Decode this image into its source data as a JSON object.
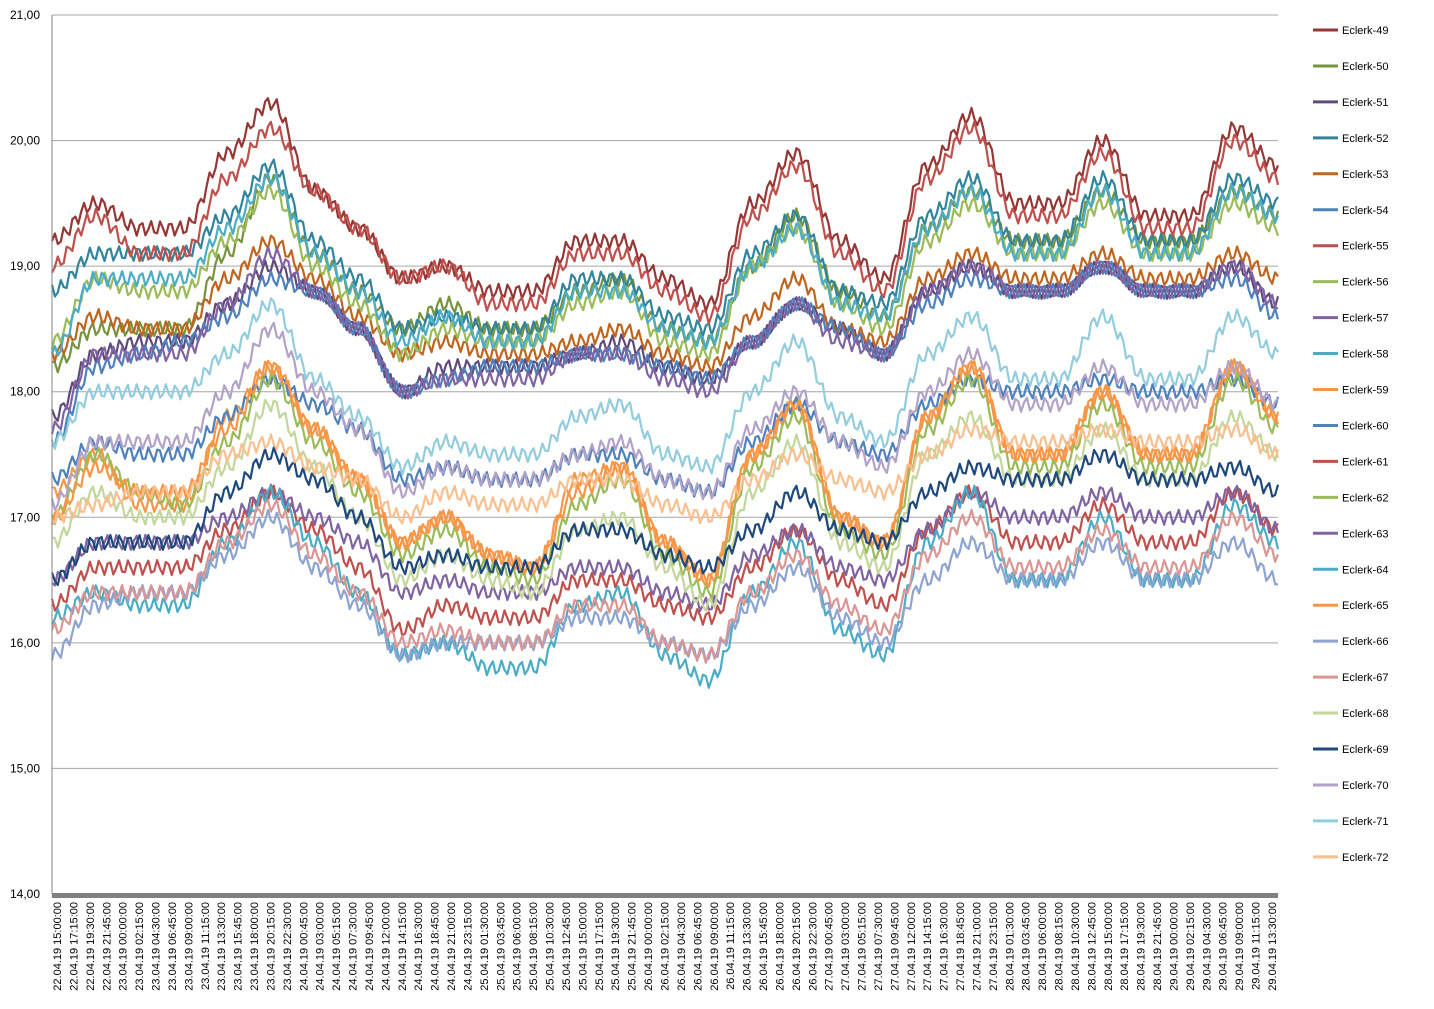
{
  "chart_data": {
    "type": "line",
    "title": "",
    "xlabel": "",
    "ylabel": "",
    "ylim": [
      14,
      21
    ],
    "yticks": [
      "14,00",
      "15,00",
      "16,00",
      "17,00",
      "18,00",
      "19,00",
      "20,00",
      "21,00"
    ],
    "grid": true,
    "legend_position": "right",
    "x_tick_labels": [
      "22.04.19 15:00:00",
      "22.04.19 17:15:00",
      "22.04.19 19:30:00",
      "22.04.19 21:45:00",
      "23.04.19 00:00:00",
      "23.04.19 02:15:00",
      "23.04.19 04:30:00",
      "23.04.19 06:45:00",
      "23.04.19 09:00:00",
      "23.04.19 11:15:00",
      "23.04.19 13:30:00",
      "23.04.19 15:45:00",
      "23.04.19 18:00:00",
      "23.04.19 20:15:00",
      "23.04.19 22:30:00",
      "24.04.19 00:45:00",
      "24.04.19 03:00:00",
      "24.04.19 05:15:00",
      "24.04.19 07:30:00",
      "24.04.19 09:45:00",
      "24.04.19 12:00:00",
      "24.04.19 14:15:00",
      "24.04.19 16:30:00",
      "24.04.19 18:45:00",
      "24.04.19 21:00:00",
      "24.04.19 23:15:00",
      "25.04.19 01:30:00",
      "25.04.19 03:45:00",
      "25.04.19 06:00:00",
      "25.04.19 08:15:00",
      "25.04.19 10:30:00",
      "25.04.19 12:45:00",
      "25.04.19 15:00:00",
      "25.04.19 17:15:00",
      "25.04.19 19:30:00",
      "25.04.19 21:45:00",
      "26.04.19 00:00:00",
      "26.04.19 02:15:00",
      "26.04.19 04:30:00",
      "26.04.19 06:45:00",
      "26.04.19 09:00:00",
      "26.04.19 11:15:00",
      "26.04.19 13:30:00",
      "26.04.19 15:45:00",
      "26.04.19 18:00:00",
      "26.04.19 20:15:00",
      "26.04.19 22:30:00",
      "27.04.19 00:45:00",
      "27.04.19 03:00:00",
      "27.04.19 05:15:00",
      "27.04.19 07:30:00",
      "27.04.19 09:45:00",
      "27.04.19 12:00:00",
      "27.04.19 14:15:00",
      "27.04.19 16:30:00",
      "27.04.19 18:45:00",
      "27.04.19 21:00:00",
      "27.04.19 23:15:00",
      "28.04.19 01:30:00",
      "28.04.19 03:45:00",
      "28.04.19 06:00:00",
      "28.04.19 08:15:00",
      "28.04.19 10:30:00",
      "28.04.19 12:45:00",
      "28.04.19 15:00:00",
      "28.04.19 17:15:00",
      "28.04.19 19:30:00",
      "28.04.19 21:45:00",
      "29.04.19 00:00:00",
      "29.04.19 02:15:00",
      "29.04.19 04:30:00",
      "29.04.19 06:45:00",
      "29.04.19 09:00:00",
      "29.04.19 11:15:00",
      "29.04.19 13:30:00"
    ],
    "x": [
      "22.04.19 15:00",
      "22.04.19 21:00",
      "23.04.19 03:00",
      "23.04.19 09:00",
      "23.04.19 15:00",
      "23.04.19 21:00",
      "24.04.19 03:00",
      "24.04.19 09:00",
      "24.04.19 15:00",
      "24.04.19 21:00",
      "25.04.19 03:00",
      "25.04.19 09:00",
      "25.04.19 15:00",
      "25.04.19 21:00",
      "26.04.19 03:00",
      "26.04.19 09:00",
      "26.04.19 15:00",
      "26.04.19 21:00",
      "27.04.19 03:00",
      "27.04.19 09:00",
      "27.04.19 15:00",
      "27.04.19 21:00",
      "28.04.19 03:00",
      "28.04.19 09:00",
      "28.04.19 15:00",
      "28.04.19 21:00",
      "29.04.19 03:00",
      "29.04.19 09:00",
      "29.04.19 14:30"
    ],
    "series": [
      {
        "name": "Eclerk-49",
        "color": "#953735",
        "values": [
          19.2,
          19.5,
          19.3,
          19.3,
          19.9,
          20.3,
          19.6,
          19.3,
          18.9,
          19.0,
          18.8,
          18.8,
          19.2,
          19.2,
          18.9,
          18.7,
          19.5,
          19.9,
          19.2,
          18.9,
          19.8,
          20.2,
          19.5,
          19.5,
          20.0,
          19.4,
          19.4,
          20.1,
          19.8
        ]
      },
      {
        "name": "Eclerk-50",
        "color": "#77933c",
        "values": [
          18.2,
          18.5,
          18.5,
          18.5,
          19.1,
          19.7,
          19.1,
          18.8,
          18.5,
          18.7,
          18.5,
          18.5,
          18.8,
          18.9,
          18.5,
          18.4,
          19.0,
          19.4,
          18.8,
          18.6,
          19.3,
          19.6,
          19.2,
          19.2,
          19.6,
          19.2,
          19.2,
          19.6,
          19.4
        ]
      },
      {
        "name": "Eclerk-51",
        "color": "#604a7b",
        "values": [
          17.8,
          18.3,
          18.4,
          18.4,
          18.7,
          19.0,
          18.8,
          18.5,
          18.0,
          18.2,
          18.2,
          18.2,
          18.3,
          18.4,
          18.2,
          18.1,
          18.4,
          18.7,
          18.5,
          18.3,
          18.8,
          19.0,
          18.8,
          18.8,
          19.0,
          18.8,
          18.8,
          19.0,
          18.7
        ]
      },
      {
        "name": "Eclerk-52",
        "color": "#31849b",
        "values": [
          18.8,
          19.1,
          19.1,
          19.1,
          19.4,
          19.8,
          19.2,
          18.9,
          18.5,
          18.6,
          18.5,
          18.5,
          18.9,
          18.9,
          18.6,
          18.5,
          19.1,
          19.4,
          18.8,
          18.7,
          19.4,
          19.7,
          19.2,
          19.2,
          19.7,
          19.2,
          19.2,
          19.7,
          19.5
        ]
      },
      {
        "name": "Eclerk-53",
        "color": "#c0651f",
        "values": [
          18.3,
          18.6,
          18.5,
          18.5,
          18.9,
          19.2,
          18.9,
          18.6,
          18.3,
          18.4,
          18.3,
          18.3,
          18.4,
          18.5,
          18.3,
          18.2,
          18.6,
          18.9,
          18.5,
          18.4,
          18.9,
          19.1,
          18.9,
          18.9,
          19.1,
          18.9,
          18.9,
          19.1,
          18.9
        ]
      },
      {
        "name": "Eclerk-54",
        "color": "#4f81bd",
        "values": [
          17.6,
          18.2,
          18.3,
          18.4,
          18.6,
          18.9,
          18.8,
          18.5,
          18.0,
          18.1,
          18.2,
          18.2,
          18.3,
          18.3,
          18.2,
          18.1,
          18.4,
          18.7,
          18.5,
          18.3,
          18.7,
          18.9,
          18.8,
          18.8,
          19.0,
          18.8,
          18.8,
          18.9,
          18.6
        ]
      },
      {
        "name": "Eclerk-55",
        "color": "#c0504d",
        "values": [
          19.0,
          19.4,
          19.1,
          19.1,
          19.7,
          20.1,
          19.6,
          19.3,
          18.9,
          19.0,
          18.7,
          18.7,
          19.1,
          19.1,
          18.8,
          18.6,
          19.4,
          19.8,
          19.1,
          18.8,
          19.7,
          20.1,
          19.4,
          19.4,
          19.9,
          19.3,
          19.3,
          20.0,
          19.7
        ]
      },
      {
        "name": "Eclerk-56",
        "color": "#9bbb59",
        "values": [
          18.4,
          18.9,
          18.8,
          18.8,
          19.2,
          19.6,
          19.0,
          18.7,
          18.3,
          18.5,
          18.4,
          18.4,
          18.7,
          18.8,
          18.4,
          18.3,
          19.0,
          19.3,
          18.7,
          18.5,
          19.2,
          19.5,
          19.1,
          19.1,
          19.5,
          19.1,
          19.1,
          19.5,
          19.3
        ]
      },
      {
        "name": "Eclerk-57",
        "color": "#8064a2",
        "values": [
          17.7,
          18.3,
          18.3,
          18.3,
          18.7,
          19.1,
          18.8,
          18.5,
          18.0,
          18.1,
          18.1,
          18.1,
          18.3,
          18.3,
          18.1,
          18.0,
          18.4,
          18.7,
          18.4,
          18.3,
          18.8,
          19.0,
          18.8,
          18.8,
          19.0,
          18.8,
          18.8,
          19.0,
          18.7
        ]
      },
      {
        "name": "Eclerk-58",
        "color": "#4bacc6",
        "values": [
          18.3,
          18.9,
          18.9,
          18.9,
          19.3,
          19.7,
          19.1,
          18.8,
          18.4,
          18.6,
          18.4,
          18.4,
          18.8,
          18.8,
          18.5,
          18.4,
          19.0,
          19.3,
          18.7,
          18.6,
          19.3,
          19.6,
          19.1,
          19.1,
          19.6,
          19.1,
          19.1,
          19.6,
          19.4
        ]
      },
      {
        "name": "Eclerk-59",
        "color": "#f79646",
        "values": [
          17.2,
          17.5,
          17.1,
          17.1,
          17.8,
          18.2,
          17.7,
          17.3,
          16.8,
          17.0,
          16.7,
          16.6,
          17.3,
          17.4,
          16.8,
          16.5,
          17.5,
          17.9,
          17.0,
          16.8,
          17.8,
          18.2,
          17.5,
          17.5,
          18.0,
          17.5,
          17.5,
          18.2,
          17.8
        ]
      },
      {
        "name": "Eclerk-60",
        "color": "#4f81bd",
        "values": [
          17.3,
          17.6,
          17.5,
          17.5,
          17.8,
          18.1,
          17.9,
          17.7,
          17.3,
          17.4,
          17.3,
          17.3,
          17.5,
          17.5,
          17.3,
          17.2,
          17.6,
          17.9,
          17.6,
          17.5,
          17.9,
          18.1,
          18.0,
          18.0,
          18.1,
          18.0,
          18.0,
          18.1,
          17.9
        ]
      },
      {
        "name": "Eclerk-61",
        "color": "#c0504d",
        "values": [
          16.3,
          16.6,
          16.6,
          16.6,
          16.9,
          17.2,
          16.9,
          16.6,
          16.1,
          16.3,
          16.2,
          16.2,
          16.5,
          16.5,
          16.3,
          16.2,
          16.6,
          16.9,
          16.5,
          16.3,
          16.9,
          17.2,
          16.8,
          16.8,
          17.1,
          16.8,
          16.8,
          17.2,
          16.9
        ]
      },
      {
        "name": "Eclerk-62",
        "color": "#9bbb59",
        "values": [
          17.0,
          17.5,
          17.2,
          17.1,
          17.6,
          18.1,
          17.6,
          17.2,
          16.7,
          16.9,
          16.6,
          16.5,
          17.1,
          17.3,
          16.7,
          16.4,
          17.4,
          17.8,
          16.9,
          16.7,
          17.7,
          18.1,
          17.4,
          17.4,
          17.9,
          17.4,
          17.4,
          18.1,
          17.7
        ]
      },
      {
        "name": "Eclerk-63",
        "color": "#8064a2",
        "values": [
          16.5,
          16.8,
          16.8,
          16.8,
          17.0,
          17.2,
          17.0,
          16.8,
          16.4,
          16.5,
          16.4,
          16.4,
          16.6,
          16.6,
          16.4,
          16.3,
          16.7,
          16.9,
          16.6,
          16.5,
          16.9,
          17.2,
          17.0,
          17.0,
          17.2,
          17.0,
          17.0,
          17.2,
          16.9
        ]
      },
      {
        "name": "Eclerk-64",
        "color": "#4bacc6",
        "values": [
          16.2,
          16.4,
          16.3,
          16.3,
          16.8,
          17.2,
          16.8,
          16.4,
          15.9,
          16.0,
          15.8,
          15.8,
          16.3,
          16.4,
          15.9,
          15.7,
          16.4,
          16.8,
          16.1,
          15.9,
          16.8,
          17.2,
          16.5,
          16.5,
          17.0,
          16.5,
          16.5,
          17.1,
          16.8
        ]
      },
      {
        "name": "Eclerk-65",
        "color": "#f79646",
        "values": [
          17.0,
          17.4,
          17.2,
          17.2,
          17.7,
          18.2,
          17.7,
          17.3,
          16.8,
          17.0,
          16.7,
          16.6,
          17.2,
          17.4,
          16.8,
          16.5,
          17.5,
          17.9,
          17.0,
          16.8,
          17.8,
          18.2,
          17.5,
          17.5,
          18.0,
          17.5,
          17.5,
          18.2,
          17.8
        ]
      },
      {
        "name": "Eclerk-66",
        "color": "#8ea4d0",
        "values": [
          15.9,
          16.3,
          16.4,
          16.4,
          16.7,
          17.0,
          16.6,
          16.3,
          15.9,
          16.0,
          16.0,
          16.0,
          16.2,
          16.2,
          16.0,
          15.9,
          16.3,
          16.6,
          16.2,
          16.0,
          16.5,
          16.8,
          16.5,
          16.5,
          16.8,
          16.5,
          16.5,
          16.8,
          16.5
        ]
      },
      {
        "name": "Eclerk-67",
        "color": "#d99694",
        "values": [
          16.1,
          16.4,
          16.4,
          16.4,
          16.8,
          17.1,
          16.7,
          16.4,
          16.0,
          16.1,
          16.0,
          16.0,
          16.3,
          16.3,
          16.0,
          15.9,
          16.4,
          16.7,
          16.3,
          16.1,
          16.7,
          17.0,
          16.6,
          16.6,
          16.9,
          16.6,
          16.6,
          17.0,
          16.7
        ]
      },
      {
        "name": "Eclerk-68",
        "color": "#c3d69b",
        "values": [
          16.8,
          17.2,
          17.0,
          17.0,
          17.4,
          17.9,
          17.4,
          17.0,
          16.5,
          16.7,
          16.5,
          16.4,
          16.9,
          17.0,
          16.6,
          16.3,
          17.2,
          17.6,
          16.8,
          16.6,
          17.5,
          17.8,
          17.3,
          17.3,
          17.7,
          17.3,
          17.3,
          17.8,
          17.5
        ]
      },
      {
        "name": "Eclerk-69",
        "color": "#1f497d",
        "values": [
          16.5,
          16.8,
          16.8,
          16.8,
          17.2,
          17.5,
          17.3,
          17.0,
          16.6,
          16.7,
          16.6,
          16.6,
          16.9,
          16.9,
          16.7,
          16.6,
          16.9,
          17.2,
          16.9,
          16.8,
          17.2,
          17.4,
          17.3,
          17.3,
          17.5,
          17.3,
          17.3,
          17.4,
          17.2
        ]
      },
      {
        "name": "Eclerk-70",
        "color": "#b3a2c7",
        "values": [
          17.1,
          17.6,
          17.6,
          17.6,
          18.0,
          18.5,
          18.0,
          17.7,
          17.2,
          17.4,
          17.3,
          17.3,
          17.5,
          17.6,
          17.3,
          17.2,
          17.7,
          18.0,
          17.6,
          17.4,
          18.0,
          18.3,
          17.9,
          17.9,
          18.2,
          17.9,
          17.9,
          18.2,
          17.9
        ]
      },
      {
        "name": "Eclerk-71",
        "color": "#93cddd",
        "values": [
          17.6,
          18.0,
          18.0,
          18.0,
          18.3,
          18.7,
          18.1,
          17.8,
          17.4,
          17.6,
          17.5,
          17.5,
          17.8,
          17.9,
          17.5,
          17.4,
          18.0,
          18.4,
          17.8,
          17.6,
          18.3,
          18.6,
          18.1,
          18.1,
          18.6,
          18.1,
          18.1,
          18.6,
          18.3
        ]
      },
      {
        "name": "Eclerk-72",
        "color": "#fabf8f",
        "values": [
          17.0,
          17.1,
          17.2,
          17.2,
          17.5,
          17.6,
          17.4,
          17.3,
          17.0,
          17.2,
          17.1,
          17.1,
          17.3,
          17.3,
          17.1,
          17.0,
          17.3,
          17.5,
          17.3,
          17.2,
          17.5,
          17.7,
          17.6,
          17.6,
          17.7,
          17.6,
          17.6,
          17.7,
          17.5
        ]
      }
    ]
  }
}
